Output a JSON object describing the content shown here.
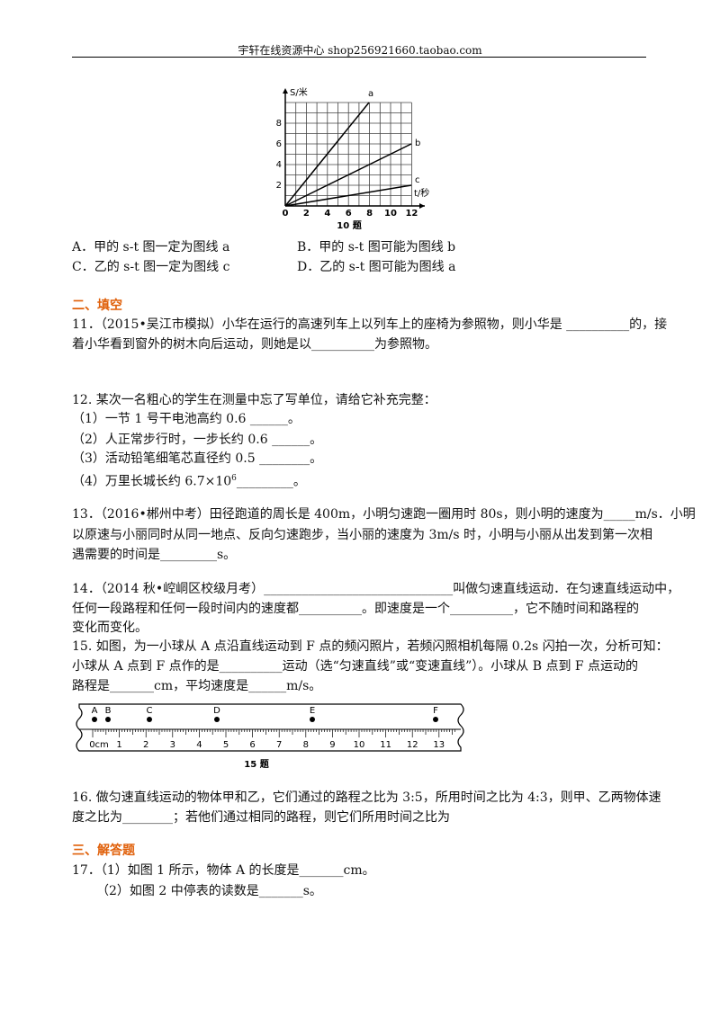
{
  "header": {
    "text": "宇轩在线资源中心   shop256921660.taobao.com"
  },
  "figure10": {
    "y_label": "S/米",
    "x_label": "t/秒",
    "y_ticks": [
      "2",
      "4",
      "6",
      "8"
    ],
    "x_ticks": [
      "0",
      "2",
      "4",
      "6",
      "8",
      "10",
      "12"
    ],
    "line_labels": [
      "a",
      "b",
      "c"
    ],
    "caption": "10 题"
  },
  "options": [
    "A．甲的 s-t 图一定为图线 a",
    "B．甲的 s-t 图可能为图线 b",
    "C．乙的 s-t 图一定为图线 c",
    "D．乙的 s-t 图可能为图线 a"
  ],
  "section2": {
    "title": "二、填空"
  },
  "q11": {
    "lines": [
      "11．（2015•吴江市模拟）小华在运行的高速列车上以列车上的座椅为参照物，则小华是 __________的，接",
      "着小华看到窗外的树木向后运动，则她是以__________为参照物。"
    ]
  },
  "q12": {
    "lines": [
      "12.  某次一名粗心的学生在测量中忘了写单位，请给它补充完整：",
      "（1）一节 1 号干电池高约 0.6 ______。",
      "（2）人正常步行时，一步长约 0.6 ______。",
      "（3）活动铅笔细笔芯直径约 0.5 ________。"
    ],
    "item4": {
      "text": "（4）万里长城长约 6.7×10",
      "sup": "6",
      "tail": "_________。"
    }
  },
  "q13": {
    "lines": [
      "13．（2016•郴州中考）田径跑道的周长是 400m，小明匀速跑一圈用时 80s，则小明的速度为_____m/s．小明",
      "以原速与小丽同时从同一地点、反向匀速跑步，当小丽的速度为 3m/s 时，小明与小丽从出发到第一次相",
      "遇需要的时间是_________s。"
    ]
  },
  "q14": {
    "lines": [
      "14．（2014 秋•崆峒区校级月考）______________________________叫做匀速直线运动．在匀速直线运动中，",
      "任何一段路程和任何一段时间内的速度都__________。即速度是一个__________，它不随时间和路程的",
      "变化而变化。"
    ]
  },
  "q15": {
    "lines": [
      "15.  如图，为一小球从 A 点沿直线运动到 F 点的频闪照片，若频闪照相机每隔 0.2s 闪拍一次，分析可知：",
      "小球从 A 点到 F 点作的是__________运动（选“匀速直线”或“变速直线”）。小球从 B 点到 F 点运动的",
      "路程是_______cm，平均速度是______m/s。"
    ]
  },
  "figure15": {
    "points": [
      "A",
      "B",
      "C",
      "D",
      "E",
      "F"
    ],
    "scale": [
      "0cm",
      "1",
      "2",
      "3",
      "4",
      "5",
      "6",
      "7",
      "8",
      "9",
      "10",
      "11",
      "12",
      "13"
    ],
    "caption": "15 题"
  },
  "q16": {
    "lines": [
      "16.  做匀速直线运动的物体甲和乙，它们通过的路程之比为 3:5，所用时间之比为 4:3，则甲、乙两物体速",
      "度之比为________；若他们通过相同的路程，则它们所用时间之比为"
    ]
  },
  "section3": {
    "title": "三、解答题"
  },
  "q17": {
    "lines": [
      "17．（1）如图 1 所示，物体 A 的长度是_______cm。",
      "（2）如图 2 中停表的读数是_______s。"
    ]
  }
}
